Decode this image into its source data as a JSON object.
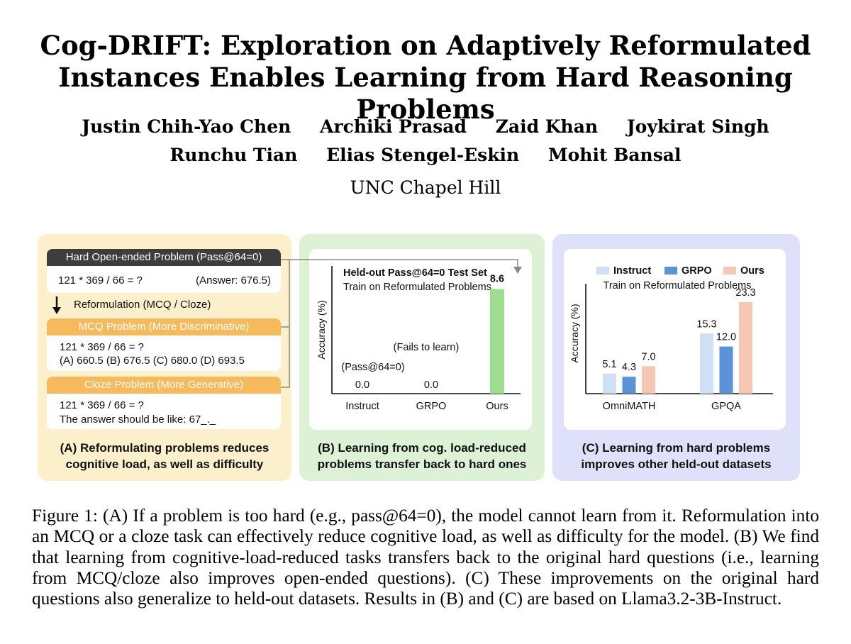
{
  "title": {
    "line1": "Cog-DRIFT: Exploration on Adaptively Reformulated",
    "line2": "Instances Enables Learning from Hard Reasoning Problems"
  },
  "authors": {
    "row1": [
      "Justin Chih-Yao Chen",
      "Archiki Prasad",
      "Zaid Khan",
      "Joykirat Singh"
    ],
    "row2": [
      "Runchu Tian",
      "Elias Stengel-Eskin",
      "Mohit Bansal"
    ]
  },
  "affiliation": "UNC Chapel Hill",
  "panel_a": {
    "header_hard": "Hard Open-ended Problem (Pass@64=0)",
    "hard_question": "121 * 369 / 66 = ?",
    "hard_answer": "(Answer: 676.5)",
    "reformulation_label": "Reformulation (MCQ / Cloze)",
    "header_mcq": "MCQ Problem (More Discriminative)",
    "mcq_question": "121 * 369 / 66 = ?",
    "mcq_options": "(A) 660.5 (B) 676.5 (C) 680.0 (D) 693.5",
    "header_cloze": "Cloze Problem (More Generative)",
    "cloze_question": "121 * 369 / 66 = ?",
    "cloze_hint": "The answer should be like: 67_._",
    "caption_line1": "(A) Reformulating problems reduces",
    "caption_line2": "cognitive load, as well as difficulty",
    "colors": {
      "hard_header": "#3d3d3d",
      "reform_header": "#f6b95b"
    }
  },
  "panel_b": {
    "caption_line1": "(B) Learning from cog. load-reduced",
    "caption_line2": "problems transfer back to hard ones"
  },
  "panel_c": {
    "caption_line1": "(C) Learning from hard problems",
    "caption_line2": "improves other held-out datasets"
  },
  "chart_data": [
    {
      "type": "bar",
      "title": "Held-out Pass@64=0 Test Set",
      "subtitle": "Train on Reformulated Problems",
      "ylabel": "Accuracy (%)",
      "categories": [
        "Instruct",
        "GRPO",
        "Ours"
      ],
      "values": [
        0.0,
        0.0,
        8.6
      ],
      "value_labels": [
        "0.0",
        "0.0",
        "8.6"
      ],
      "ylim": [
        0,
        10.5
      ],
      "annotations": [
        "(Fails to learn)",
        "(Pass@64=0)"
      ],
      "color": "#9edc8e"
    },
    {
      "type": "bar",
      "subtitle": "Train on Reformulated Problems",
      "ylabel": "Accuracy (%)",
      "categories": [
        "OmniMATH",
        "GPQA"
      ],
      "series": [
        {
          "name": "Instruct",
          "values": [
            5.1,
            15.3
          ],
          "color": "#cfe0f4"
        },
        {
          "name": "GRPO",
          "values": [
            4.3,
            12.0
          ],
          "color": "#5b93d8"
        },
        {
          "name": "Ours",
          "values": [
            7.0,
            23.3
          ],
          "color": "#f6c8b4"
        }
      ],
      "ylim": [
        0,
        28
      ],
      "legend": "top"
    }
  ],
  "figure_caption": "Figure 1: (A) If a problem is too hard (e.g., pass@64=0), the model cannot learn from it. Reformulation into an MCQ or a cloze task can effectively reduce cognitive load, as well as difficulty for the model. (B) We find that learning from cognitive-load-reduced tasks transfers back to the original hard questions (i.e., learning from MCQ/cloze also improves open-ended questions). (C) These improvements on the original hard questions also generalize to held-out datasets. Results in (B) and (C) are based on Llama3.2-3B-Instruct."
}
